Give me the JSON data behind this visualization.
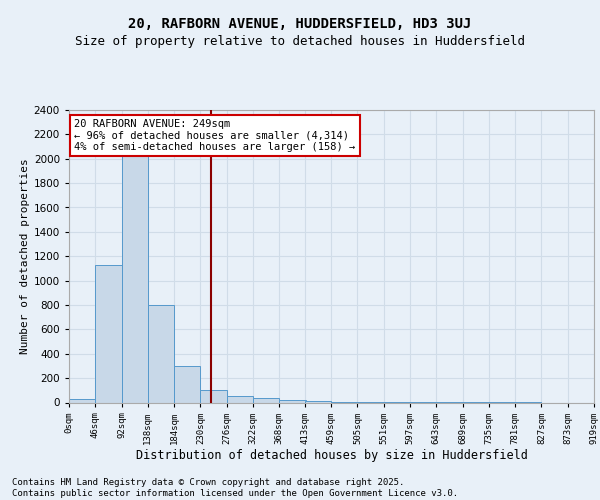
{
  "title1": "20, RAFBORN AVENUE, HUDDERSFIELD, HD3 3UJ",
  "title2": "Size of property relative to detached houses in Huddersfield",
  "xlabel": "Distribution of detached houses by size in Huddersfield",
  "ylabel": "Number of detached properties",
  "bin_labels": [
    "0sqm",
    "46sqm",
    "92sqm",
    "138sqm",
    "184sqm",
    "230sqm",
    "276sqm",
    "322sqm",
    "368sqm",
    "413sqm",
    "459sqm",
    "505sqm",
    "551sqm",
    "597sqm",
    "643sqm",
    "689sqm",
    "735sqm",
    "781sqm",
    "827sqm",
    "873sqm",
    "919sqm"
  ],
  "bin_edges": [
    0,
    46,
    92,
    138,
    184,
    230,
    276,
    322,
    368,
    413,
    459,
    505,
    551,
    597,
    643,
    689,
    735,
    781,
    827,
    873,
    919
  ],
  "bar_heights": [
    30,
    1130,
    2050,
    800,
    300,
    100,
    50,
    40,
    20,
    10,
    8,
    5,
    5,
    3,
    3,
    2,
    1,
    1,
    0,
    0
  ],
  "bar_color": "#c8d8e8",
  "bar_edge_color": "#5599cc",
  "vline_x": 249,
  "vline_color": "#8b0000",
  "annotation_text": "20 RAFBORN AVENUE: 249sqm\n← 96% of detached houses are smaller (4,314)\n4% of semi-detached houses are larger (158) →",
  "annotation_box_color": "#ffffff",
  "annotation_box_edge": "#cc0000",
  "ylim": [
    0,
    2400
  ],
  "yticks": [
    0,
    200,
    400,
    600,
    800,
    1000,
    1200,
    1400,
    1600,
    1800,
    2000,
    2200,
    2400
  ],
  "footer1": "Contains HM Land Registry data © Crown copyright and database right 2025.",
  "footer2": "Contains public sector information licensed under the Open Government Licence v3.0.",
  "bg_color": "#e8f0f8",
  "grid_color": "#d0dce8",
  "title1_fontsize": 10,
  "title2_fontsize": 9
}
